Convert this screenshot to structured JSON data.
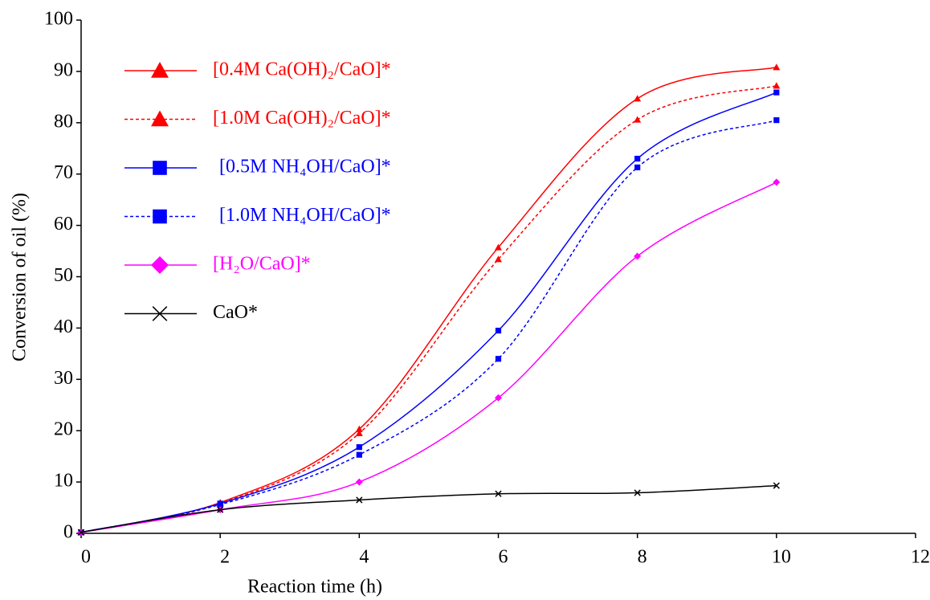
{
  "chart_data": {
    "type": "line",
    "x_label": "Reaction time (h)",
    "y_label": "Conversion of oil (%)",
    "x": [
      0,
      2,
      4,
      6,
      8,
      10
    ],
    "series": [
      {
        "name": "[0.4M Ca(OH)₂/CaO]*",
        "color": "#ff0000",
        "dash": false,
        "marker": "triangle",
        "values": [
          0.2,
          6,
          20.3,
          55.7,
          84.7,
          90.8
        ]
      },
      {
        "name": "[1.0M Ca(OH)₂/CaO]*",
        "color": "#ff0000",
        "dash": true,
        "marker": "triangle",
        "values": [
          0.2,
          5.8,
          19.5,
          53.4,
          80.6,
          87.2
        ]
      },
      {
        "name": "[0.5M NH₄OH/CaO]*",
        "color": "#0000ff",
        "dash": false,
        "marker": "square",
        "values": [
          0.2,
          5.8,
          16.8,
          39.5,
          73,
          85.9
        ]
      },
      {
        "name": "[1.0M NH₄OH/CaO]*",
        "color": "#0000ff",
        "dash": true,
        "marker": "square",
        "values": [
          0.2,
          5.6,
          15.3,
          34,
          71.3,
          80.5
        ]
      },
      {
        "name": "[H₂O/CaO]*",
        "color": "#ff00ff",
        "dash": false,
        "marker": "diamond",
        "values": [
          0.2,
          4.6,
          10,
          26.4,
          54,
          68.4
        ]
      },
      {
        "name": "CaO*",
        "color": "#000000",
        "dash": false,
        "marker": "x",
        "values": [
          0.2,
          4.6,
          6.5,
          7.7,
          7.9,
          9.3
        ]
      }
    ],
    "xlim": [
      0,
      12
    ],
    "xticks": [
      0,
      2,
      4,
      6,
      8,
      10,
      12
    ],
    "ylim": [
      0,
      100
    ],
    "yticks": [
      0,
      10,
      20,
      30,
      40,
      50,
      60,
      70,
      80,
      90,
      100
    ],
    "grid": false,
    "smooth": true,
    "legend": "top-left"
  }
}
